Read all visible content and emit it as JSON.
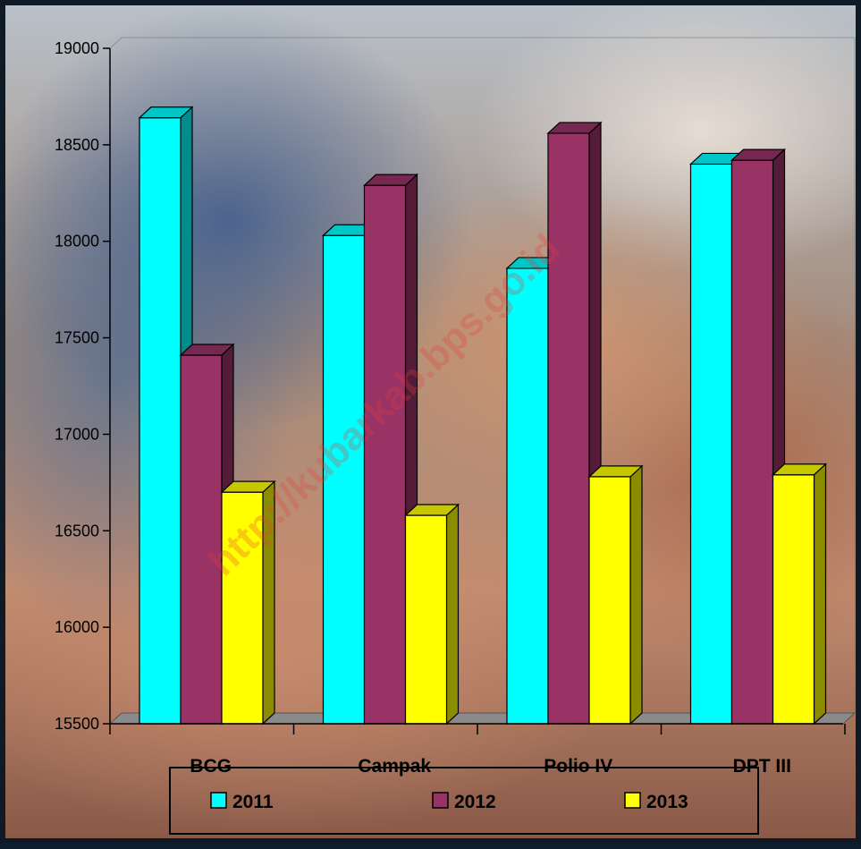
{
  "watermark": "http://kubarkab.bps.go.id",
  "colors": {
    "2011": "#00ffff",
    "2012": "#993366",
    "2013": "#ffff00"
  },
  "chart_data": {
    "type": "bar",
    "categories": [
      "BCG",
      "Campak",
      "Polio IV",
      "DPT III"
    ],
    "series": [
      {
        "name": "2011",
        "values": [
          18640,
          18030,
          17860,
          18400
        ]
      },
      {
        "name": "2012",
        "values": [
          17410,
          18290,
          18560,
          18420
        ]
      },
      {
        "name": "2013",
        "values": [
          16700,
          16580,
          16780,
          16790
        ]
      }
    ],
    "ylim": [
      15500,
      19000
    ],
    "yticks": [
      "15500",
      "16000",
      "16500",
      "17000",
      "17500",
      "18000",
      "18500",
      "19000"
    ],
    "legend": [
      "2011",
      "2012",
      "2013"
    ],
    "legend_position": "bottom",
    "grid": false,
    "style": "3d-column"
  }
}
